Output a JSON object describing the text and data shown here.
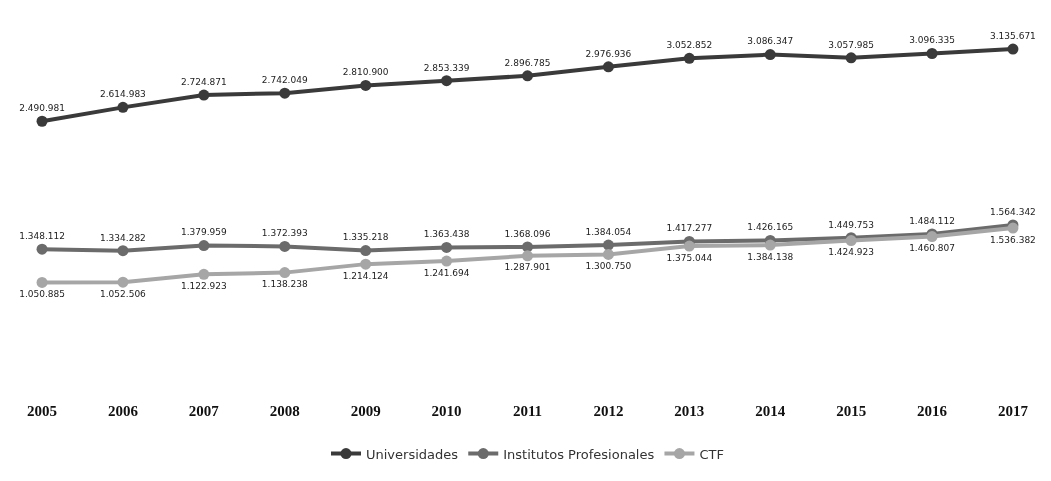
{
  "chart_data": {
    "type": "line",
    "categories": [
      "2005",
      "2006",
      "2007",
      "2008",
      "2009",
      "2010",
      "2011",
      "2012",
      "2013",
      "2014",
      "2015",
      "2016",
      "2017"
    ],
    "series": [
      {
        "name": "Universidades",
        "color": "#3a3a3a",
        "values": [
          2490981,
          2614983,
          2724871,
          2742049,
          2810900,
          2853339,
          2896785,
          2976936,
          3052852,
          3086347,
          3057985,
          3096335,
          3135671
        ],
        "value_labels": [
          "2.490.981",
          "2.614.983",
          "2.724.871",
          "2.742.049",
          "2.810.900",
          "2.853.339",
          "2.896.785",
          "2.976.936",
          "3.052.852",
          "3.086.347",
          "3.057.985",
          "3.096.335",
          "3.135.671"
        ]
      },
      {
        "name": "Institutos Profesionales",
        "color": "#6b6b6b",
        "values": [
          1348112,
          1334282,
          1379959,
          1372393,
          1335218,
          1363438,
          1368096,
          1384054,
          1417277,
          1426165,
          1449753,
          1484112,
          1564342
        ],
        "value_labels": [
          "1.348.112",
          "1.334.282",
          "1.379.959",
          "1.372.393",
          "1.335.218",
          "1.363.438",
          "1.368.096",
          "1.384.054",
          "1.417.277",
          "1.426.165",
          "1.449.753",
          "1.484.112",
          "1.564.342"
        ]
      },
      {
        "name": "CTF",
        "color": "#a6a6a6",
        "values": [
          1050885,
          1052506,
          1122923,
          1138238,
          1214124,
          1241694,
          1287901,
          1300750,
          1375044,
          1384138,
          1424923,
          1460807,
          1536382
        ],
        "value_labels": [
          "1.050.885",
          "1.052.506",
          "1.122.923",
          "1.138.238",
          "1.214.124",
          "1.241.694",
          "1.287.901",
          "1.300.750",
          "1.375.044",
          "1.384.138",
          "1.424.923",
          "1.460.807",
          "1.536.382"
        ]
      }
    ],
    "marker": "circle",
    "line_style": "solid",
    "legend": "bottom",
    "grid": false
  }
}
